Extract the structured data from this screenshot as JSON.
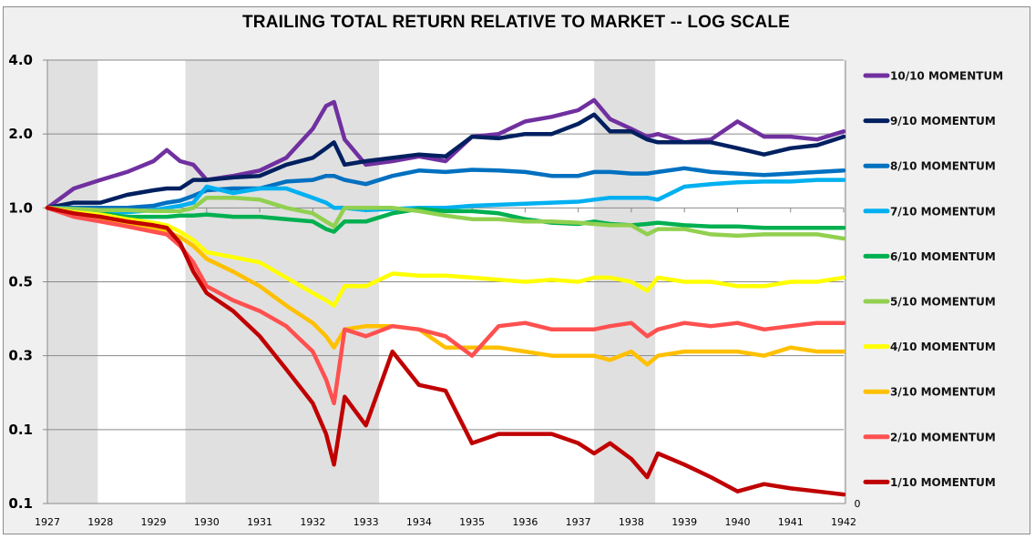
{
  "chart_data": {
    "type": "line",
    "title": "TRAILING TOTAL RETURN RELATIVE TO MARKET -- LOG SCALE",
    "xlabel": "",
    "ylabel": "",
    "yscale": "log2",
    "ylim": [
      0.0625,
      4.0
    ],
    "xlim": [
      1927,
      1942
    ],
    "y_ticks": [
      {
        "value": 4.0,
        "label": "4.0"
      },
      {
        "value": 2.0,
        "label": "2.0"
      },
      {
        "value": 1.0,
        "label": "1.0"
      },
      {
        "value": 0.5,
        "label": "0.5"
      },
      {
        "value": 0.25,
        "label": "0.3"
      },
      {
        "value": 0.125,
        "label": "0.1"
      },
      {
        "value": 0.0625,
        "label": "0.1"
      }
    ],
    "secondary_axis_label": "0",
    "x_ticks": [
      "1927",
      "1928",
      "1929",
      "1930",
      "1931",
      "1932",
      "1933",
      "1934",
      "1935",
      "1936",
      "1937",
      "1938",
      "1939",
      "1940",
      "1941",
      "1942"
    ],
    "grid": "horizontal",
    "legend_position": "right",
    "shaded_periods": [
      {
        "start": 1927.0,
        "end": 1927.95
      },
      {
        "start": 1929.6,
        "end": 1933.25
      },
      {
        "start": 1937.3,
        "end": 1938.45
      }
    ],
    "x": [
      1927.0,
      1927.5,
      1928.0,
      1928.5,
      1929.0,
      1929.25,
      1929.5,
      1929.75,
      1930.0,
      1930.5,
      1931.0,
      1931.5,
      1932.0,
      1932.25,
      1932.4,
      1932.6,
      1933.0,
      1933.5,
      1934.0,
      1934.5,
      1935.0,
      1935.5,
      1936.0,
      1936.5,
      1937.0,
      1937.3,
      1937.6,
      1938.0,
      1938.3,
      1938.5,
      1939.0,
      1939.5,
      1940.0,
      1940.5,
      1941.0,
      1941.5,
      1942.0
    ],
    "series": [
      {
        "name": "10/10 MOMENTUM",
        "color": "#7030a0",
        "values": [
          1.0,
          1.2,
          1.3,
          1.4,
          1.55,
          1.72,
          1.55,
          1.5,
          1.3,
          1.35,
          1.42,
          1.6,
          2.1,
          2.6,
          2.7,
          1.9,
          1.5,
          1.55,
          1.62,
          1.55,
          1.95,
          2.0,
          2.25,
          2.35,
          2.5,
          2.75,
          2.3,
          2.1,
          1.95,
          2.0,
          1.85,
          1.9,
          2.25,
          1.95,
          1.95,
          1.9,
          2.05
        ]
      },
      {
        "name": "9/10 MOMENTUM",
        "color": "#002060",
        "values": [
          1.0,
          1.05,
          1.05,
          1.13,
          1.18,
          1.2,
          1.2,
          1.3,
          1.3,
          1.33,
          1.35,
          1.5,
          1.6,
          1.75,
          1.85,
          1.5,
          1.55,
          1.6,
          1.65,
          1.62,
          1.95,
          1.92,
          2.0,
          2.0,
          2.2,
          2.4,
          2.05,
          2.05,
          1.9,
          1.85,
          1.85,
          1.85,
          1.75,
          1.65,
          1.75,
          1.8,
          1.95
        ]
      },
      {
        "name": "8/10 MOMENTUM",
        "color": "#0070c0",
        "values": [
          1.0,
          1.0,
          1.0,
          1.0,
          1.02,
          1.05,
          1.07,
          1.12,
          1.18,
          1.2,
          1.2,
          1.28,
          1.3,
          1.35,
          1.35,
          1.3,
          1.25,
          1.35,
          1.42,
          1.4,
          1.43,
          1.42,
          1.4,
          1.35,
          1.35,
          1.4,
          1.4,
          1.38,
          1.38,
          1.4,
          1.45,
          1.4,
          1.38,
          1.36,
          1.38,
          1.4,
          1.42
        ]
      },
      {
        "name": "7/10 MOMENTUM",
        "color": "#00b0f0",
        "values": [
          1.0,
          0.98,
          0.97,
          0.96,
          0.98,
          1.0,
          1.02,
          1.05,
          1.22,
          1.15,
          1.2,
          1.2,
          1.1,
          1.05,
          1.0,
          1.0,
          0.98,
          0.99,
          1.0,
          1.0,
          1.02,
          1.03,
          1.04,
          1.05,
          1.06,
          1.08,
          1.1,
          1.1,
          1.1,
          1.08,
          1.22,
          1.25,
          1.27,
          1.28,
          1.28,
          1.3,
          1.3
        ]
      },
      {
        "name": "6/10 MOMENTUM",
        "color": "#00b050",
        "values": [
          1.0,
          0.97,
          0.95,
          0.92,
          0.92,
          0.92,
          0.93,
          0.93,
          0.94,
          0.92,
          0.92,
          0.9,
          0.88,
          0.82,
          0.8,
          0.88,
          0.88,
          0.95,
          0.99,
          0.97,
          0.97,
          0.95,
          0.9,
          0.87,
          0.86,
          0.88,
          0.86,
          0.85,
          0.86,
          0.87,
          0.85,
          0.84,
          0.84,
          0.83,
          0.83,
          0.83,
          0.83
        ]
      },
      {
        "name": "5/10 MOMENTUM",
        "color": "#92d050",
        "values": [
          1.0,
          0.99,
          0.98,
          0.98,
          0.97,
          0.97,
          0.97,
          1.0,
          1.1,
          1.1,
          1.08,
          1.0,
          0.95,
          0.88,
          0.84,
          1.0,
          1.0,
          1.0,
          0.97,
          0.93,
          0.9,
          0.9,
          0.88,
          0.88,
          0.87,
          0.86,
          0.85,
          0.85,
          0.78,
          0.82,
          0.82,
          0.78,
          0.77,
          0.78,
          0.78,
          0.78,
          0.75
        ]
      },
      {
        "name": "4/10 MOMENTUM",
        "color": "#ffff00",
        "values": [
          1.0,
          0.96,
          0.94,
          0.9,
          0.87,
          0.85,
          0.8,
          0.74,
          0.66,
          0.63,
          0.6,
          0.52,
          0.45,
          0.42,
          0.4,
          0.48,
          0.48,
          0.54,
          0.53,
          0.53,
          0.52,
          0.51,
          0.5,
          0.51,
          0.5,
          0.52,
          0.52,
          0.5,
          0.46,
          0.52,
          0.5,
          0.5,
          0.48,
          0.48,
          0.5,
          0.5,
          0.52
        ]
      },
      {
        "name": "3/10 MOMENTUM",
        "color": "#ffc000",
        "values": [
          1.0,
          0.95,
          0.9,
          0.86,
          0.82,
          0.8,
          0.76,
          0.7,
          0.62,
          0.55,
          0.48,
          0.4,
          0.34,
          0.3,
          0.27,
          0.32,
          0.33,
          0.33,
          0.32,
          0.27,
          0.27,
          0.27,
          0.26,
          0.25,
          0.25,
          0.25,
          0.24,
          0.26,
          0.23,
          0.25,
          0.26,
          0.26,
          0.26,
          0.25,
          0.27,
          0.26,
          0.26
        ]
      },
      {
        "name": "2/10 MOMENTUM",
        "color": "#ff5050",
        "values": [
          1.0,
          0.92,
          0.88,
          0.84,
          0.8,
          0.78,
          0.7,
          0.6,
          0.48,
          0.42,
          0.38,
          0.33,
          0.26,
          0.2,
          0.16,
          0.32,
          0.3,
          0.33,
          0.32,
          0.3,
          0.25,
          0.33,
          0.34,
          0.32,
          0.32,
          0.32,
          0.33,
          0.34,
          0.3,
          0.32,
          0.34,
          0.33,
          0.34,
          0.32,
          0.33,
          0.34,
          0.34
        ]
      },
      {
        "name": "1/10 MOMENTUM",
        "color": "#c00000",
        "values": [
          1.0,
          0.95,
          0.92,
          0.88,
          0.85,
          0.83,
          0.72,
          0.55,
          0.45,
          0.38,
          0.3,
          0.22,
          0.16,
          0.12,
          0.09,
          0.17,
          0.13,
          0.26,
          0.19,
          0.18,
          0.11,
          0.12,
          0.12,
          0.12,
          0.11,
          0.1,
          0.11,
          0.095,
          0.08,
          0.1,
          0.09,
          0.08,
          0.07,
          0.075,
          0.072,
          0.07,
          0.068
        ]
      }
    ]
  }
}
